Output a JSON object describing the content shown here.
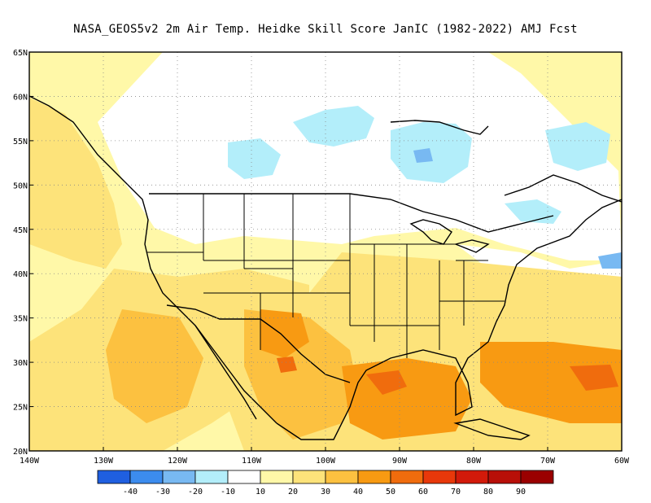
{
  "title": "NASA_GEOS5v2  2m Air Temp. Heidke Skill Score JanIC (1982-2022) AMJ Fcst",
  "map": {
    "lat_labels": [
      "65N",
      "60N",
      "55N",
      "50N",
      "45N",
      "40N",
      "35N",
      "30N",
      "25N",
      "20N"
    ],
    "lon_labels": [
      "140W",
      "130W",
      "120W",
      "110W",
      "100W",
      "90W",
      "80W",
      "70W",
      "60W"
    ],
    "lat_range": [
      20,
      65
    ],
    "lon_range": [
      -140,
      -60
    ],
    "gridlines": true
  },
  "colorbar": {
    "colors": [
      "#1f5fe0",
      "#3c8cee",
      "#78b9f2",
      "#b3eefa",
      "#ffffff",
      "#fff8a8",
      "#fde37a",
      "#fcc140",
      "#f89a12",
      "#f06c0d",
      "#e8380a",
      "#d21a0a",
      "#b80f08",
      "#9a0000"
    ],
    "labels": [
      "-40",
      "-30",
      "-20",
      "-10",
      "10",
      "20",
      "30",
      "40",
      "50",
      "60",
      "70",
      "80",
      "90"
    ]
  },
  "palette": {
    "ocean_band": "#fff8a8",
    "warm_mid": "#fcc140",
    "warm_high": "#f89a12",
    "hot": "#f06c0d",
    "cool_light": "#b3eefa",
    "cool_mid": "#78b9f2"
  }
}
